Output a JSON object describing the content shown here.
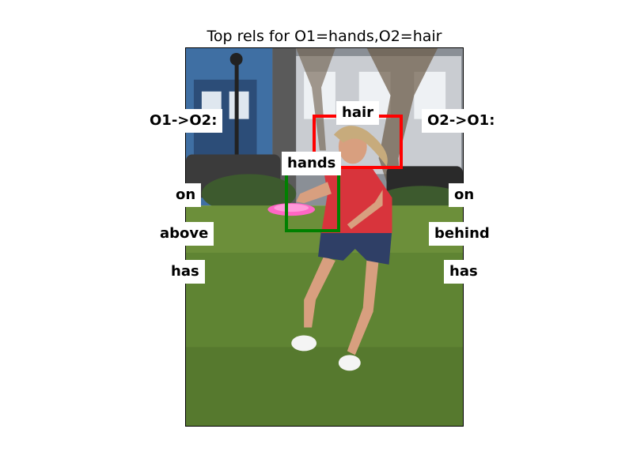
{
  "title": "Top rels for O1=hands,O2=hair",
  "o1_to_o2": {
    "header": "O1->O2:",
    "relations": [
      "on",
      "above",
      "has"
    ]
  },
  "o2_to_o1": {
    "header": "O2->O1:",
    "relations": [
      "on",
      "behind",
      "has"
    ]
  },
  "objects": {
    "o1": {
      "label": "hands",
      "color": "#008000"
    },
    "o2": {
      "label": "hair",
      "color": "#ff0000"
    }
  },
  "photo": {
    "description_icon": "frisbee-park-photo"
  }
}
